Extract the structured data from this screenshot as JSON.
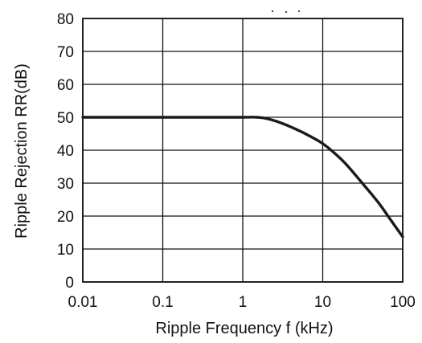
{
  "chart_data": {
    "type": "line",
    "title": "",
    "xlabel": "Ripple Frequency f (kHz)",
    "ylabel": "Ripple Rejection RR(dB)",
    "x_scale": "log",
    "xlim": [
      0.01,
      100
    ],
    "ylim": [
      0,
      80
    ],
    "x_ticks": [
      "0.01",
      "0.1",
      "1",
      "10",
      "100"
    ],
    "y_ticks": [
      "0",
      "10",
      "20",
      "30",
      "40",
      "50",
      "60",
      "70",
      "80"
    ],
    "grid": true,
    "legend": "none",
    "colors": {
      "line": "#1a1a1a",
      "grid": "#111111"
    },
    "series": [
      {
        "x": [
          0.01,
          0.03,
          0.1,
          0.3,
          1,
          1.5,
          2,
          3,
          5,
          7,
          10,
          15,
          20,
          30,
          50,
          70,
          100
        ],
        "y": [
          50,
          50,
          50,
          50,
          50,
          50,
          49.6,
          48.3,
          46,
          44.2,
          42,
          38.5,
          35.5,
          30.5,
          24,
          19,
          13.7
        ]
      }
    ]
  }
}
